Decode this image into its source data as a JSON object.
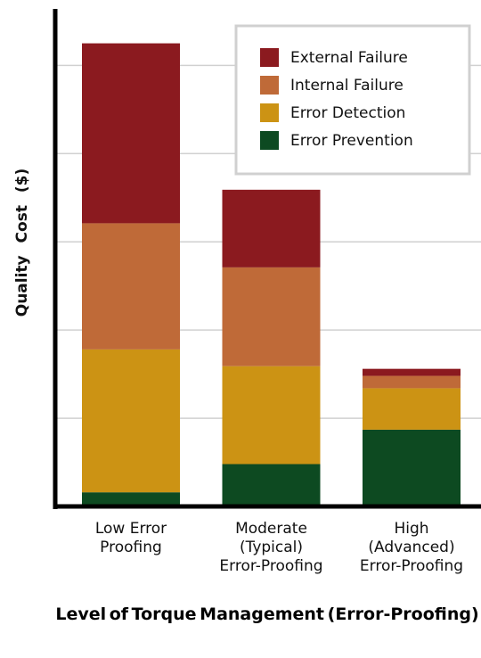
{
  "chart_data": {
    "type": "stacked_bar",
    "y_label": "Quality Cost ($)",
    "x_label": "Level of Torque Management (Error-Proofing)",
    "categories": [
      [
        "Low Error",
        "Proofing"
      ],
      [
        "Moderate",
        "(Typical)",
        "Error-Proofing"
      ],
      [
        "High",
        "(Advanced)",
        "Error-Proofing"
      ]
    ],
    "series": [
      {
        "name": "Error Prevention",
        "color": "#0d4a21",
        "values": [
          0.16,
          0.48,
          0.87
        ]
      },
      {
        "name": "Error Detection",
        "color": "#cc9314",
        "values": [
          1.62,
          1.11,
          0.47
        ]
      },
      {
        "name": "Internal Failure",
        "color": "#bf6a38",
        "values": [
          1.43,
          1.12,
          0.14
        ]
      },
      {
        "name": "External Failure",
        "color": "#8b1a1f",
        "values": [
          2.04,
          0.88,
          0.08
        ]
      }
    ],
    "ylim": [
      0,
      5.64
    ],
    "yticks": [
      1,
      2,
      3,
      4,
      5
    ],
    "grid": true,
    "legend": "upper right"
  }
}
